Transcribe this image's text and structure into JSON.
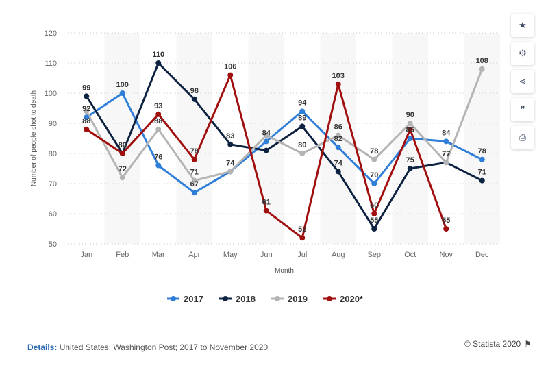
{
  "chart_data": {
    "type": "line",
    "categories": [
      "Jan",
      "Feb",
      "Mar",
      "Apr",
      "May",
      "Jun",
      "Jul",
      "Aug",
      "Sep",
      "Oct",
      "Nov",
      "Dec"
    ],
    "series": [
      {
        "name": "2017",
        "color": "#2f7ed8",
        "values": [
          92,
          100,
          76,
          67,
          74,
          84,
          94,
          82,
          70,
          85,
          84,
          78
        ]
      },
      {
        "name": "2018",
        "color": "#0d2240",
        "values": [
          99,
          80,
          110,
          98,
          83,
          81,
          89,
          74,
          55,
          75,
          77,
          71
        ]
      },
      {
        "name": "2019",
        "color": "#b4b4b4",
        "values": [
          94,
          72,
          88,
          71,
          74,
          86,
          80,
          86,
          78,
          90,
          77,
          108
        ]
      },
      {
        "name": "2020*",
        "color": "#a10e0e",
        "values": [
          88,
          80,
          93,
          78,
          106,
          61,
          52,
          103,
          60,
          88,
          55,
          null
        ]
      }
    ],
    "data_labels": [
      {
        "c": 0,
        "t": "99"
      },
      {
        "c": 0,
        "t": "92"
      },
      {
        "c": 0,
        "t": "88"
      },
      {
        "c": 1,
        "t": "100"
      },
      {
        "c": 1,
        "t": "80"
      },
      {
        "c": 1,
        "t": "72"
      },
      {
        "c": 2,
        "t": "110"
      },
      {
        "c": 2,
        "t": "93"
      },
      {
        "c": 2,
        "t": "88"
      },
      {
        "c": 2,
        "t": "76"
      },
      {
        "c": 3,
        "t": "98"
      },
      {
        "c": 3,
        "t": "78"
      },
      {
        "c": 3,
        "t": "71"
      },
      {
        "c": 3,
        "t": "67"
      },
      {
        "c": 4,
        "t": "106"
      },
      {
        "c": 4,
        "t": "83"
      },
      {
        "c": 4,
        "t": "74"
      },
      {
        "c": 5,
        "t": "84"
      },
      {
        "c": 5,
        "t": "61"
      },
      {
        "c": 6,
        "t": "94"
      },
      {
        "c": 6,
        "t": "89"
      },
      {
        "c": 6,
        "t": "80"
      },
      {
        "c": 6,
        "t": "52"
      },
      {
        "c": 7,
        "t": "103"
      },
      {
        "c": 7,
        "t": "86"
      },
      {
        "c": 7,
        "t": "82"
      },
      {
        "c": 7,
        "t": "74"
      },
      {
        "c": 8,
        "t": "78"
      },
      {
        "c": 8,
        "t": "70"
      },
      {
        "c": 8,
        "t": "60"
      },
      {
        "c": 8,
        "t": "55"
      },
      {
        "c": 9,
        "t": "90"
      },
      {
        "c": 9,
        "t": "85"
      },
      {
        "c": 9,
        "t": "75"
      },
      {
        "c": 10,
        "t": "84"
      },
      {
        "c": 10,
        "t": "77"
      },
      {
        "c": 10,
        "t": "55"
      },
      {
        "c": 11,
        "t": "108"
      },
      {
        "c": 11,
        "t": "78"
      },
      {
        "c": 11,
        "t": "71"
      }
    ],
    "xlabel": "Month",
    "ylabel": "Number of people shot to death",
    "ylim": [
      50,
      120
    ],
    "yticks": [
      50,
      60,
      70,
      80,
      90,
      100,
      110,
      120
    ],
    "grid": true,
    "legend_position": "bottom"
  },
  "toolbar": [
    {
      "name": "star-icon",
      "glyph": "★"
    },
    {
      "name": "gear-icon",
      "glyph": "⚙"
    },
    {
      "name": "share-icon",
      "glyph": "⋖"
    },
    {
      "name": "quote-icon",
      "glyph": "❞"
    },
    {
      "name": "print-icon",
      "glyph": "⎙"
    }
  ],
  "footer": {
    "details_label": "Details:",
    "details_text": "United States; Washington Post; 2017 to November 2020",
    "credit": "© Statista 2020",
    "flag_glyph": "⚑"
  }
}
